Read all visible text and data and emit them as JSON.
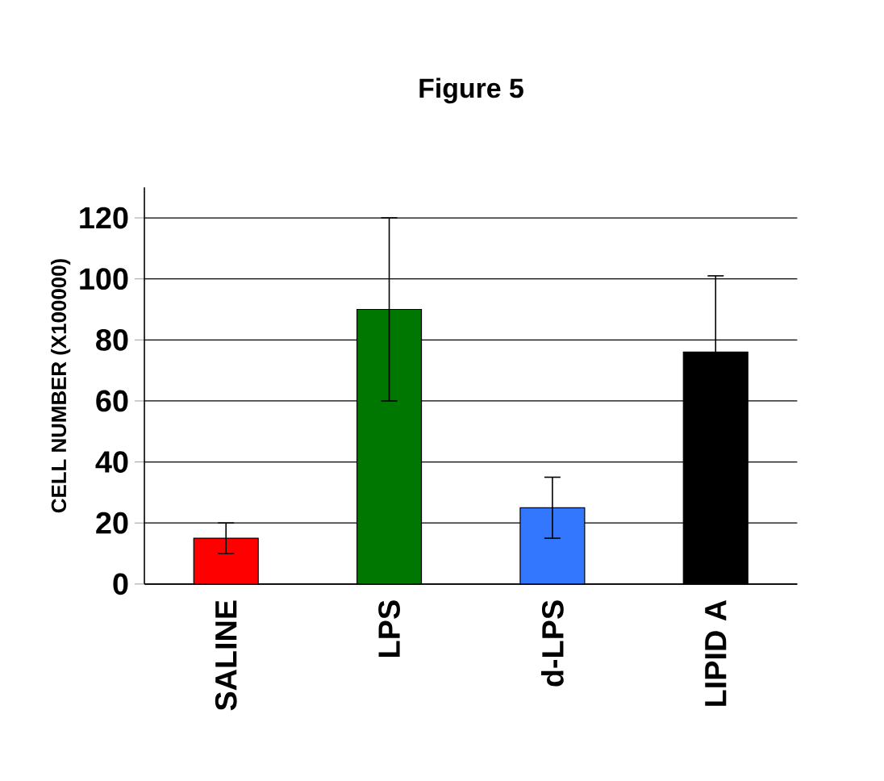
{
  "chart_data": {
    "type": "bar",
    "title": "Figure 5",
    "ylabel": "CELL NUMBER (X100000)",
    "categories": [
      "SALINE",
      "LPS",
      "d-LPS",
      "LIPID A"
    ],
    "values": [
      15,
      90,
      25,
      76
    ],
    "errors": [
      5,
      30,
      10,
      25
    ],
    "colors": [
      "#ff0000",
      "#007700",
      "#3377ff",
      "#000000"
    ],
    "ylim": [
      0,
      130
    ],
    "yticks": [
      0,
      20,
      40,
      60,
      80,
      100,
      120
    ],
    "grid": "y"
  }
}
